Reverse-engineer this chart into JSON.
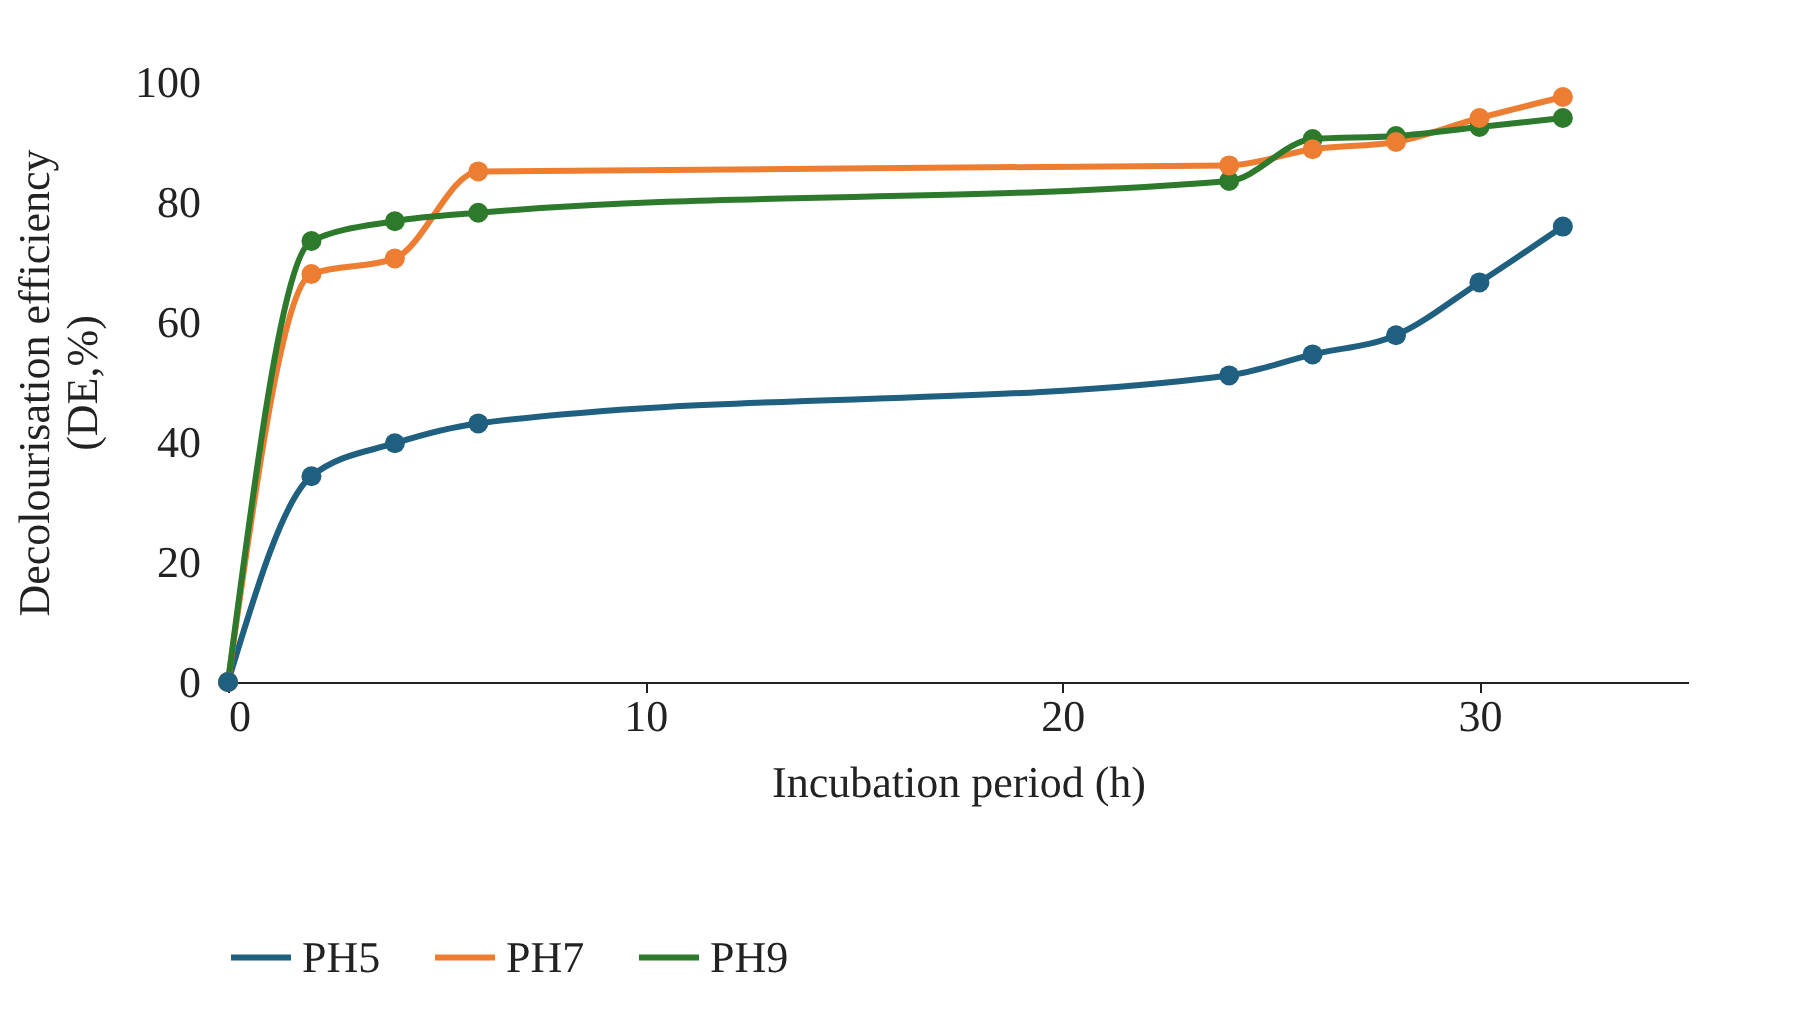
{
  "chart_data": {
    "type": "line",
    "xlabel": "Incubation period (h)",
    "ylabel": "Decolourisation efficiency (DE,%)",
    "x": [
      0,
      2,
      4,
      6,
      24,
      26,
      28,
      30,
      32
    ],
    "series": [
      {
        "name": "PH5",
        "color": "#1f5f7f",
        "values": [
          0,
          34.3,
          39.8,
          43.1,
          51.1,
          54.6,
          57.8,
          66.6,
          75.9
        ]
      },
      {
        "name": "PH7",
        "color": "#ed7d31",
        "values": [
          0,
          68,
          70.6,
          85.1,
          86.1,
          88.8,
          90,
          94,
          97.5
        ]
      },
      {
        "name": "PH9",
        "color": "#2d7a2d",
        "values": [
          0,
          73.5,
          76.8,
          78.2,
          83.5,
          90.5,
          91,
          92.5,
          94
        ]
      }
    ],
    "xlim": [
      0,
      35
    ],
    "xticks": [
      0,
      10,
      20,
      30
    ],
    "ylim": [
      0,
      100
    ],
    "yticks": [
      0,
      20,
      40,
      60,
      80,
      100
    ],
    "grid": false,
    "legend": "bottom",
    "marker": "circle",
    "line_style": "solid"
  }
}
